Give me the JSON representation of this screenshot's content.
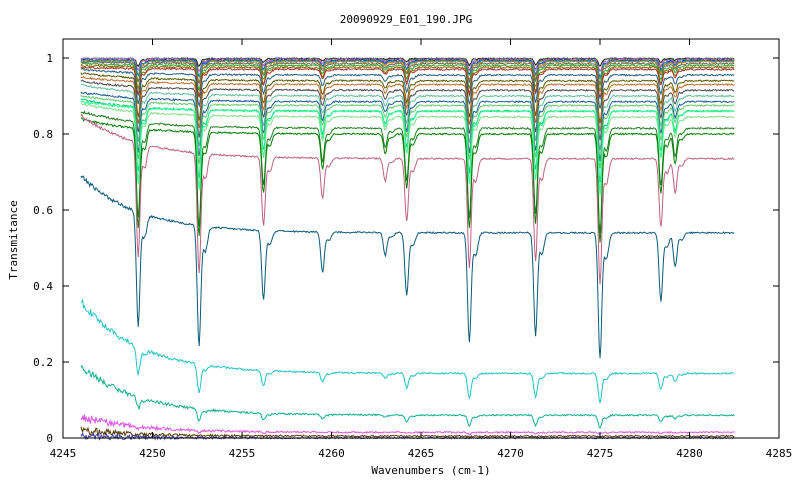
{
  "chart_data": {
    "type": "line",
    "title": "20090929_E01_190.JPG",
    "xlabel": "Wavenumbers (cm-1)",
    "ylabel": "Transmitance",
    "xlim": [
      4245,
      4285
    ],
    "ylim": [
      0,
      1.05
    ],
    "x_ticks": [
      4245,
      4250,
      4255,
      4260,
      4265,
      4270,
      4275,
      4280,
      4285
    ],
    "x_tick_labels": [
      "4245",
      "4250",
      "4255",
      "4260",
      "4265",
      "4270",
      "4275",
      "4280",
      "4285"
    ],
    "y_ticks": [
      0,
      0.2,
      0.4,
      0.6,
      0.8,
      1
    ],
    "y_tick_labels": [
      "0",
      "0.2",
      "0.4",
      "0.6",
      "0.8",
      "1"
    ],
    "grid": false,
    "legend": "none",
    "x_range": [
      4246,
      4282.5
    ],
    "absorption_lines": [
      {
        "x": 4249.2,
        "width": 0.14,
        "strength": 1.0
      },
      {
        "x": 4252.6,
        "width": 0.14,
        "strength": 1.05
      },
      {
        "x": 4256.2,
        "width": 0.14,
        "strength": 0.6
      },
      {
        "x": 4259.5,
        "width": 0.14,
        "strength": 0.35
      },
      {
        "x": 4263.0,
        "width": 0.14,
        "strength": 0.2
      },
      {
        "x": 4264.2,
        "width": 0.14,
        "strength": 0.55
      },
      {
        "x": 4267.7,
        "width": 0.14,
        "strength": 0.95
      },
      {
        "x": 4271.4,
        "width": 0.14,
        "strength": 0.9
      },
      {
        "x": 4275.0,
        "width": 0.14,
        "strength": 1.1
      },
      {
        "x": 4278.4,
        "width": 0.14,
        "strength": 0.6
      },
      {
        "x": 4279.2,
        "width": 0.14,
        "strength": 0.3
      }
    ],
    "series": [
      {
        "color": "#1a1a1a",
        "baseline": 1.0,
        "depth": 0.02,
        "start": 1.0
      },
      {
        "color": "#3b7a3b",
        "baseline": 0.998,
        "depth": 0.03,
        "start": 1.0
      },
      {
        "color": "#cc66cc",
        "baseline": 0.996,
        "depth": 0.03,
        "start": 1.0
      },
      {
        "color": "#2222cc",
        "baseline": 0.994,
        "depth": 0.04,
        "start": 0.995
      },
      {
        "color": "#00a0a0",
        "baseline": 0.992,
        "depth": 0.04,
        "start": 0.995
      },
      {
        "color": "#c08000",
        "baseline": 0.99,
        "depth": 0.05,
        "start": 0.99
      },
      {
        "color": "#666666",
        "baseline": 0.985,
        "depth": 0.05,
        "start": 0.99
      },
      {
        "color": "#33aa33",
        "baseline": 0.98,
        "depth": 0.06,
        "start": 0.985
      },
      {
        "color": "#8a6a00",
        "baseline": 0.975,
        "depth": 0.07,
        "start": 0.98
      },
      {
        "color": "#aa3333",
        "baseline": 0.97,
        "depth": 0.07,
        "start": 0.975
      },
      {
        "color": "#206080",
        "baseline": 0.955,
        "depth": 0.08,
        "start": 0.97
      },
      {
        "color": "#5a5a00",
        "baseline": 0.94,
        "depth": 0.1,
        "start": 0.96
      },
      {
        "color": "#c07030",
        "baseline": 0.93,
        "depth": 0.11,
        "start": 0.95
      },
      {
        "color": "#4a4a4a",
        "baseline": 0.915,
        "depth": 0.12,
        "start": 0.94
      },
      {
        "color": "#60c0a0",
        "baseline": 0.9,
        "depth": 0.13,
        "start": 0.93
      },
      {
        "color": "#1a5a9a",
        "baseline": 0.885,
        "depth": 0.14,
        "start": 0.91
      },
      {
        "color": "#66cc66",
        "baseline": 0.875,
        "depth": 0.15,
        "start": 0.9
      },
      {
        "color": "#00cc77",
        "baseline": 0.86,
        "depth": 0.17,
        "start": 0.89
      },
      {
        "color": "#88dd88",
        "baseline": 0.845,
        "depth": 0.18,
        "start": 0.88
      },
      {
        "color": "#33ff99",
        "baseline": 0.86,
        "depth": 0.2,
        "start": 0.885
      },
      {
        "color": "#1f7f1f",
        "baseline": 0.815,
        "depth": 0.25,
        "start": 0.86
      },
      {
        "color": "#008000",
        "baseline": 0.8,
        "depth": 0.26,
        "start": 0.84
      },
      {
        "color": "#c06080",
        "baseline": 0.735,
        "depth": 0.3,
        "start": 0.85
      },
      {
        "color": "#0a5a7a",
        "baseline": 0.54,
        "depth": 0.3,
        "start": 0.69
      },
      {
        "color": "#22c4c4",
        "baseline": 0.17,
        "depth": 0.07,
        "start": 0.36
      },
      {
        "color": "#10b090",
        "baseline": 0.06,
        "depth": 0.03,
        "start": 0.19
      },
      {
        "color": "#dd55dd",
        "baseline": 0.015,
        "depth": 0.005,
        "start": 0.055
      },
      {
        "color": "#5a3a00",
        "baseline": 0.005,
        "depth": 0.002,
        "start": 0.02
      },
      {
        "color": "#4444aa",
        "baseline": 0.0,
        "depth": 0.0,
        "start": 0.005
      }
    ]
  }
}
